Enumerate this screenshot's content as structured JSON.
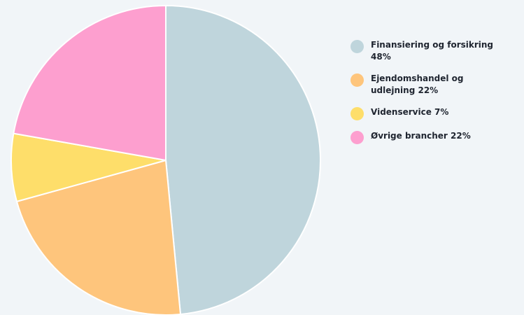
{
  "colors": {
    "background": "#f1f5f8",
    "slice_stroke": "#ffffff"
  },
  "chart_data": {
    "type": "pie",
    "start_angle_deg": 0,
    "direction": "clockwise",
    "slices": [
      {
        "label": "Finansiering og forsikring 48%",
        "value": 48,
        "color": "#bfd5dc"
      },
      {
        "label": "Ejendomshandel og udlejning 22%",
        "value": 22,
        "color": "#fec57c"
      },
      {
        "label": "Videnservice 7%",
        "value": 7,
        "color": "#fede6a"
      },
      {
        "label": "Øvrige brancher 22%",
        "value": 22,
        "color": "#fd9fcf"
      }
    ],
    "legend": {
      "placement": "right",
      "entries": [
        {
          "text": "Finansiering og forsikring\n48%",
          "color": "#bfd5dc"
        },
        {
          "text": "Ejendomshandel og\nudlejning 22%",
          "color": "#fec57c"
        },
        {
          "text": "Videnservice 7%",
          "color": "#fede6a"
        },
        {
          "text": "Øvrige brancher 22%",
          "color": "#fd9fcf"
        }
      ]
    }
  }
}
